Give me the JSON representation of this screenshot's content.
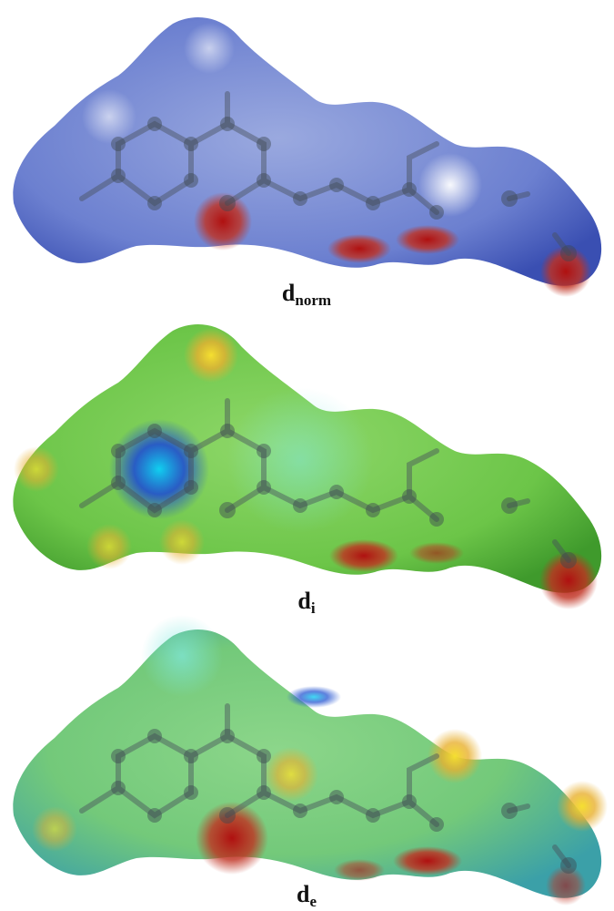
{
  "panels": [
    {
      "label": "d",
      "subscript": "norm"
    },
    {
      "label": "d",
      "subscript": "i"
    },
    {
      "label": "d",
      "subscript": "e"
    }
  ]
}
